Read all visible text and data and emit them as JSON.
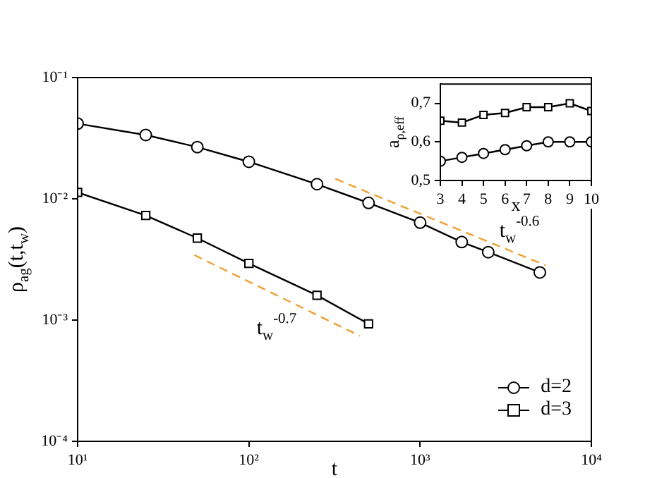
{
  "chart_data": [
    {
      "type": "line",
      "xlabel": "t",
      "ylabel": "ρ$_{ag}$(t,t$_{w}$)",
      "log": "xy",
      "xlim": [
        10,
        10000
      ],
      "ylim": [
        0.0001,
        0.1
      ],
      "xticks": [
        {
          "value": 10,
          "label": "10¹"
        },
        {
          "value": 100,
          "label": "10²"
        },
        {
          "value": 1000,
          "label": "10³"
        },
        {
          "value": 10000,
          "label": "10⁴"
        }
      ],
      "yticks": [
        {
          "value": 0.0001,
          "label": "10⁻⁴"
        },
        {
          "value": 0.001,
          "label": "10⁻³"
        },
        {
          "value": 0.01,
          "label": "10⁻²"
        },
        {
          "value": 0.1,
          "label": "10⁻¹"
        }
      ],
      "legend": "bottom right",
      "grid": false,
      "series": [
        {
          "name": "d=2",
          "color": "#000000",
          "marker": "circle",
          "x": [
            10,
            25,
            50,
            100,
            250,
            500,
            1000,
            1750,
            2500,
            5000
          ],
          "values": [
            0.0417,
            0.0336,
            0.0267,
            0.0202,
            0.0132,
            0.00925,
            0.00636,
            0.0044,
            0.00363,
            0.00247
          ]
        },
        {
          "name": "d=3",
          "color": "#000000",
          "marker": "square",
          "x": [
            10,
            25,
            50,
            100,
            250,
            500
          ],
          "values": [
            0.0113,
            0.00728,
            0.00474,
            0.00293,
            0.0016,
            0.00093
          ]
        },
        {
          "color": "#f0a030",
          "marker": "none",
          "line_style": "dashed",
          "x": [
            320,
            5400
          ],
          "values": [
            0.0146,
            0.00283
          ]
        },
        {
          "color": "#f0a030",
          "marker": "none",
          "line_style": "dashed",
          "x": [
            48,
            445
          ],
          "values": [
            0.00344,
            0.00074
          ]
        }
      ],
      "annotations": [
        "t$_{w}$$^{-0.6}$",
        "t$_{w}$$^{-0.7}$"
      ]
    },
    {
      "type": "line",
      "xlabel": "x",
      "ylabel": "a$_{ρ,eff}$",
      "xlim": [
        3,
        10
      ],
      "ylim": [
        0.5,
        0.75
      ],
      "xticks": [
        3,
        4,
        5,
        6,
        7,
        8,
        9,
        10
      ],
      "yticks": [
        {
          "value": 0.5,
          "label": "0,5"
        },
        {
          "value": 0.6,
          "label": "0,6"
        },
        {
          "value": 0.7,
          "label": "0,7"
        }
      ],
      "grid": false,
      "series": [
        {
          "color": "#000000",
          "marker": "circle",
          "x": [
            3,
            4,
            5,
            6,
            7,
            8,
            9,
            10
          ],
          "values": [
            0.55,
            0.56,
            0.57,
            0.58,
            0.59,
            0.6,
            0.6,
            0.6
          ]
        },
        {
          "color": "#000000",
          "marker": "square",
          "x": [
            3,
            4,
            5,
            6,
            7,
            8,
            9,
            10
          ],
          "values": [
            0.655,
            0.65,
            0.67,
            0.675,
            0.69,
            0.69,
            0.7,
            0.68
          ]
        }
      ]
    }
  ]
}
